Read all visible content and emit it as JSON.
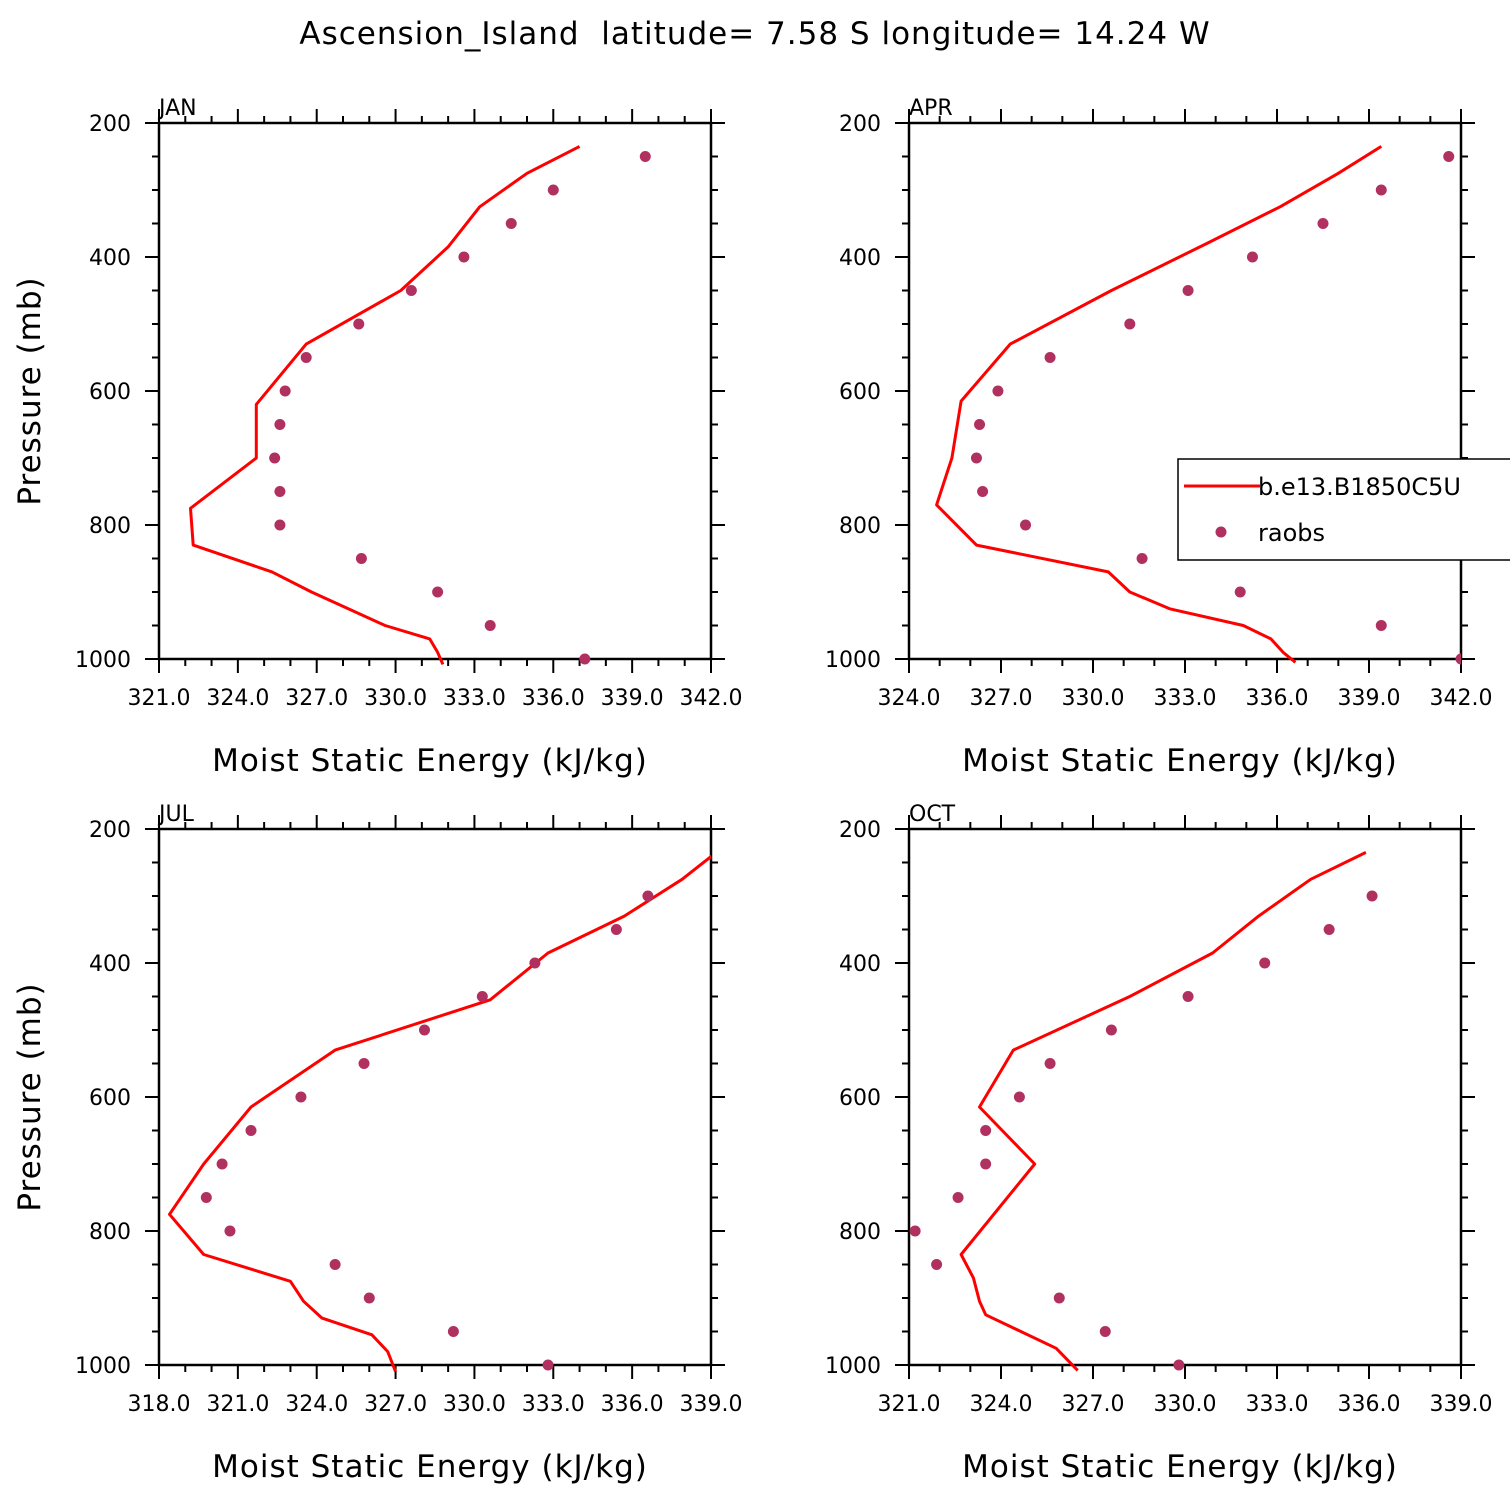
{
  "title": "Ascension_Island  latitude= 7.58 S longitude= 14.24 W",
  "colors": {
    "model_line": "#ff0000",
    "obs_marker": "#b03060",
    "axes": "#000000",
    "background": "#ffffff"
  },
  "legend": {
    "entries": [
      {
        "label": "b.e13.B1850C5U",
        "style": "line",
        "color": "#ff0000"
      },
      {
        "label": "raobs",
        "style": "marker",
        "color": "#b03060"
      }
    ]
  },
  "chart_data": [
    {
      "type": "line",
      "panel": "JAN",
      "xlabel": "Moist Static Energy (kJ/kg)",
      "ylabel": "Pressure (mb)",
      "xlim": [
        321.0,
        342.0
      ],
      "ylim": [
        1000,
        200
      ],
      "xticks": [
        "321.0",
        "324.0",
        "327.0",
        "330.0",
        "333.0",
        "336.0",
        "339.0",
        "342.0"
      ],
      "yticks": [
        "200",
        "400",
        "600",
        "800",
        "1000"
      ],
      "series": [
        {
          "name": "b.e13.B1850C5U",
          "kind": "line",
          "x": [
            337.0,
            335.0,
            333.2,
            332.0,
            330.2,
            326.6,
            324.7,
            324.7,
            322.2,
            322.3,
            325.3,
            326.8,
            328.2,
            329.6,
            331.3,
            331.6,
            331.8
          ],
          "y": [
            235,
            275,
            325,
            385,
            450,
            530,
            620,
            700,
            775,
            830,
            870,
            900,
            925,
            950,
            970,
            990,
            1008
          ]
        },
        {
          "name": "raobs",
          "kind": "scatter",
          "x": [
            339.5,
            336.0,
            334.4,
            332.6,
            330.6,
            328.6,
            326.6,
            325.8,
            325.6,
            325.4,
            325.6,
            325.6,
            328.7,
            331.6,
            333.6,
            337.2
          ],
          "y": [
            250,
            300,
            350,
            400,
            450,
            500,
            550,
            600,
            650,
            700,
            750,
            800,
            850,
            900,
            950,
            1000
          ]
        }
      ]
    },
    {
      "type": "line",
      "panel": "APR",
      "xlabel": "Moist Static Energy (kJ/kg)",
      "ylabel": "",
      "xlim": [
        324.0,
        342.0
      ],
      "ylim": [
        1000,
        200
      ],
      "xticks": [
        "324.0",
        "327.0",
        "330.0",
        "333.0",
        "336.0",
        "339.0",
        "342.0"
      ],
      "yticks": [
        "200",
        "400",
        "600",
        "800",
        "1000"
      ],
      "series": [
        {
          "name": "b.e13.B1850C5U",
          "kind": "line",
          "x": [
            339.4,
            338.0,
            336.1,
            333.7,
            330.6,
            327.3,
            325.7,
            325.4,
            324.9,
            326.2,
            330.5,
            331.2,
            332.5,
            334.9,
            335.8,
            336.2,
            336.6
          ],
          "y": [
            235,
            275,
            325,
            380,
            450,
            530,
            615,
            700,
            770,
            830,
            870,
            900,
            925,
            950,
            970,
            990,
            1005
          ]
        },
        {
          "name": "raobs",
          "kind": "scatter",
          "x": [
            341.6,
            339.4,
            337.5,
            335.2,
            333.1,
            331.2,
            328.6,
            326.9,
            326.3,
            326.2,
            326.4,
            327.8,
            331.6,
            334.8,
            339.4,
            342.0
          ],
          "y": [
            250,
            300,
            350,
            400,
            450,
            500,
            550,
            600,
            650,
            700,
            750,
            800,
            850,
            900,
            950,
            1000
          ]
        }
      ]
    },
    {
      "type": "line",
      "panel": "JUL",
      "xlabel": "Moist Static Energy (kJ/kg)",
      "ylabel": "Pressure (mb)",
      "xlim": [
        318.0,
        339.0
      ],
      "ylim": [
        1000,
        200
      ],
      "xticks": [
        "318.0",
        "321.0",
        "324.0",
        "327.0",
        "330.0",
        "333.0",
        "336.0",
        "339.0"
      ],
      "yticks": [
        "200",
        "400",
        "600",
        "800",
        "1000"
      ],
      "series": [
        {
          "name": "b.e13.B1850C5U",
          "kind": "line",
          "x": [
            339.2,
            337.9,
            335.7,
            332.8,
            330.6,
            324.7,
            321.5,
            319.7,
            318.4,
            319.7,
            323.0,
            323.5,
            324.2,
            326.1,
            326.7,
            327.0
          ],
          "y": [
            235,
            275,
            330,
            385,
            455,
            530,
            615,
            700,
            775,
            835,
            875,
            905,
            930,
            955,
            980,
            1010
          ]
        },
        {
          "name": "raobs",
          "kind": "scatter",
          "x": [
            336.6,
            335.4,
            332.3,
            330.3,
            328.1,
            325.8,
            323.4,
            321.5,
            320.4,
            319.8,
            320.7,
            324.7,
            326.0,
            329.2,
            332.8
          ],
          "y": [
            300,
            350,
            400,
            450,
            500,
            550,
            600,
            650,
            700,
            750,
            800,
            850,
            900,
            950,
            1000
          ]
        }
      ]
    },
    {
      "type": "line",
      "panel": "OCT",
      "xlabel": "Moist Static Energy (kJ/kg)",
      "ylabel": "",
      "xlim": [
        321.0,
        339.0
      ],
      "ylim": [
        1000,
        200
      ],
      "xticks": [
        "321.0",
        "324.0",
        "327.0",
        "330.0",
        "333.0",
        "336.0",
        "339.0"
      ],
      "yticks": [
        "200",
        "400",
        "600",
        "800",
        "1000"
      ],
      "series": [
        {
          "name": "b.e13.B1850C5U",
          "kind": "line",
          "x": [
            335.9,
            334.1,
            332.4,
            330.9,
            328.2,
            324.4,
            323.3,
            325.1,
            322.7,
            323.1,
            323.3,
            323.5,
            325.8,
            326.5
          ],
          "y": [
            235,
            275,
            330,
            385,
            450,
            530,
            615,
            700,
            835,
            870,
            905,
            925,
            975,
            1008
          ]
        },
        {
          "name": "raobs",
          "kind": "scatter",
          "x": [
            336.1,
            334.7,
            332.6,
            330.1,
            327.6,
            325.6,
            324.6,
            323.5,
            323.5,
            322.6,
            321.2,
            321.9,
            325.9,
            327.4,
            329.8
          ],
          "y": [
            300,
            350,
            400,
            450,
            500,
            550,
            600,
            650,
            700,
            750,
            800,
            850,
            900,
            950,
            1000
          ]
        }
      ]
    }
  ]
}
